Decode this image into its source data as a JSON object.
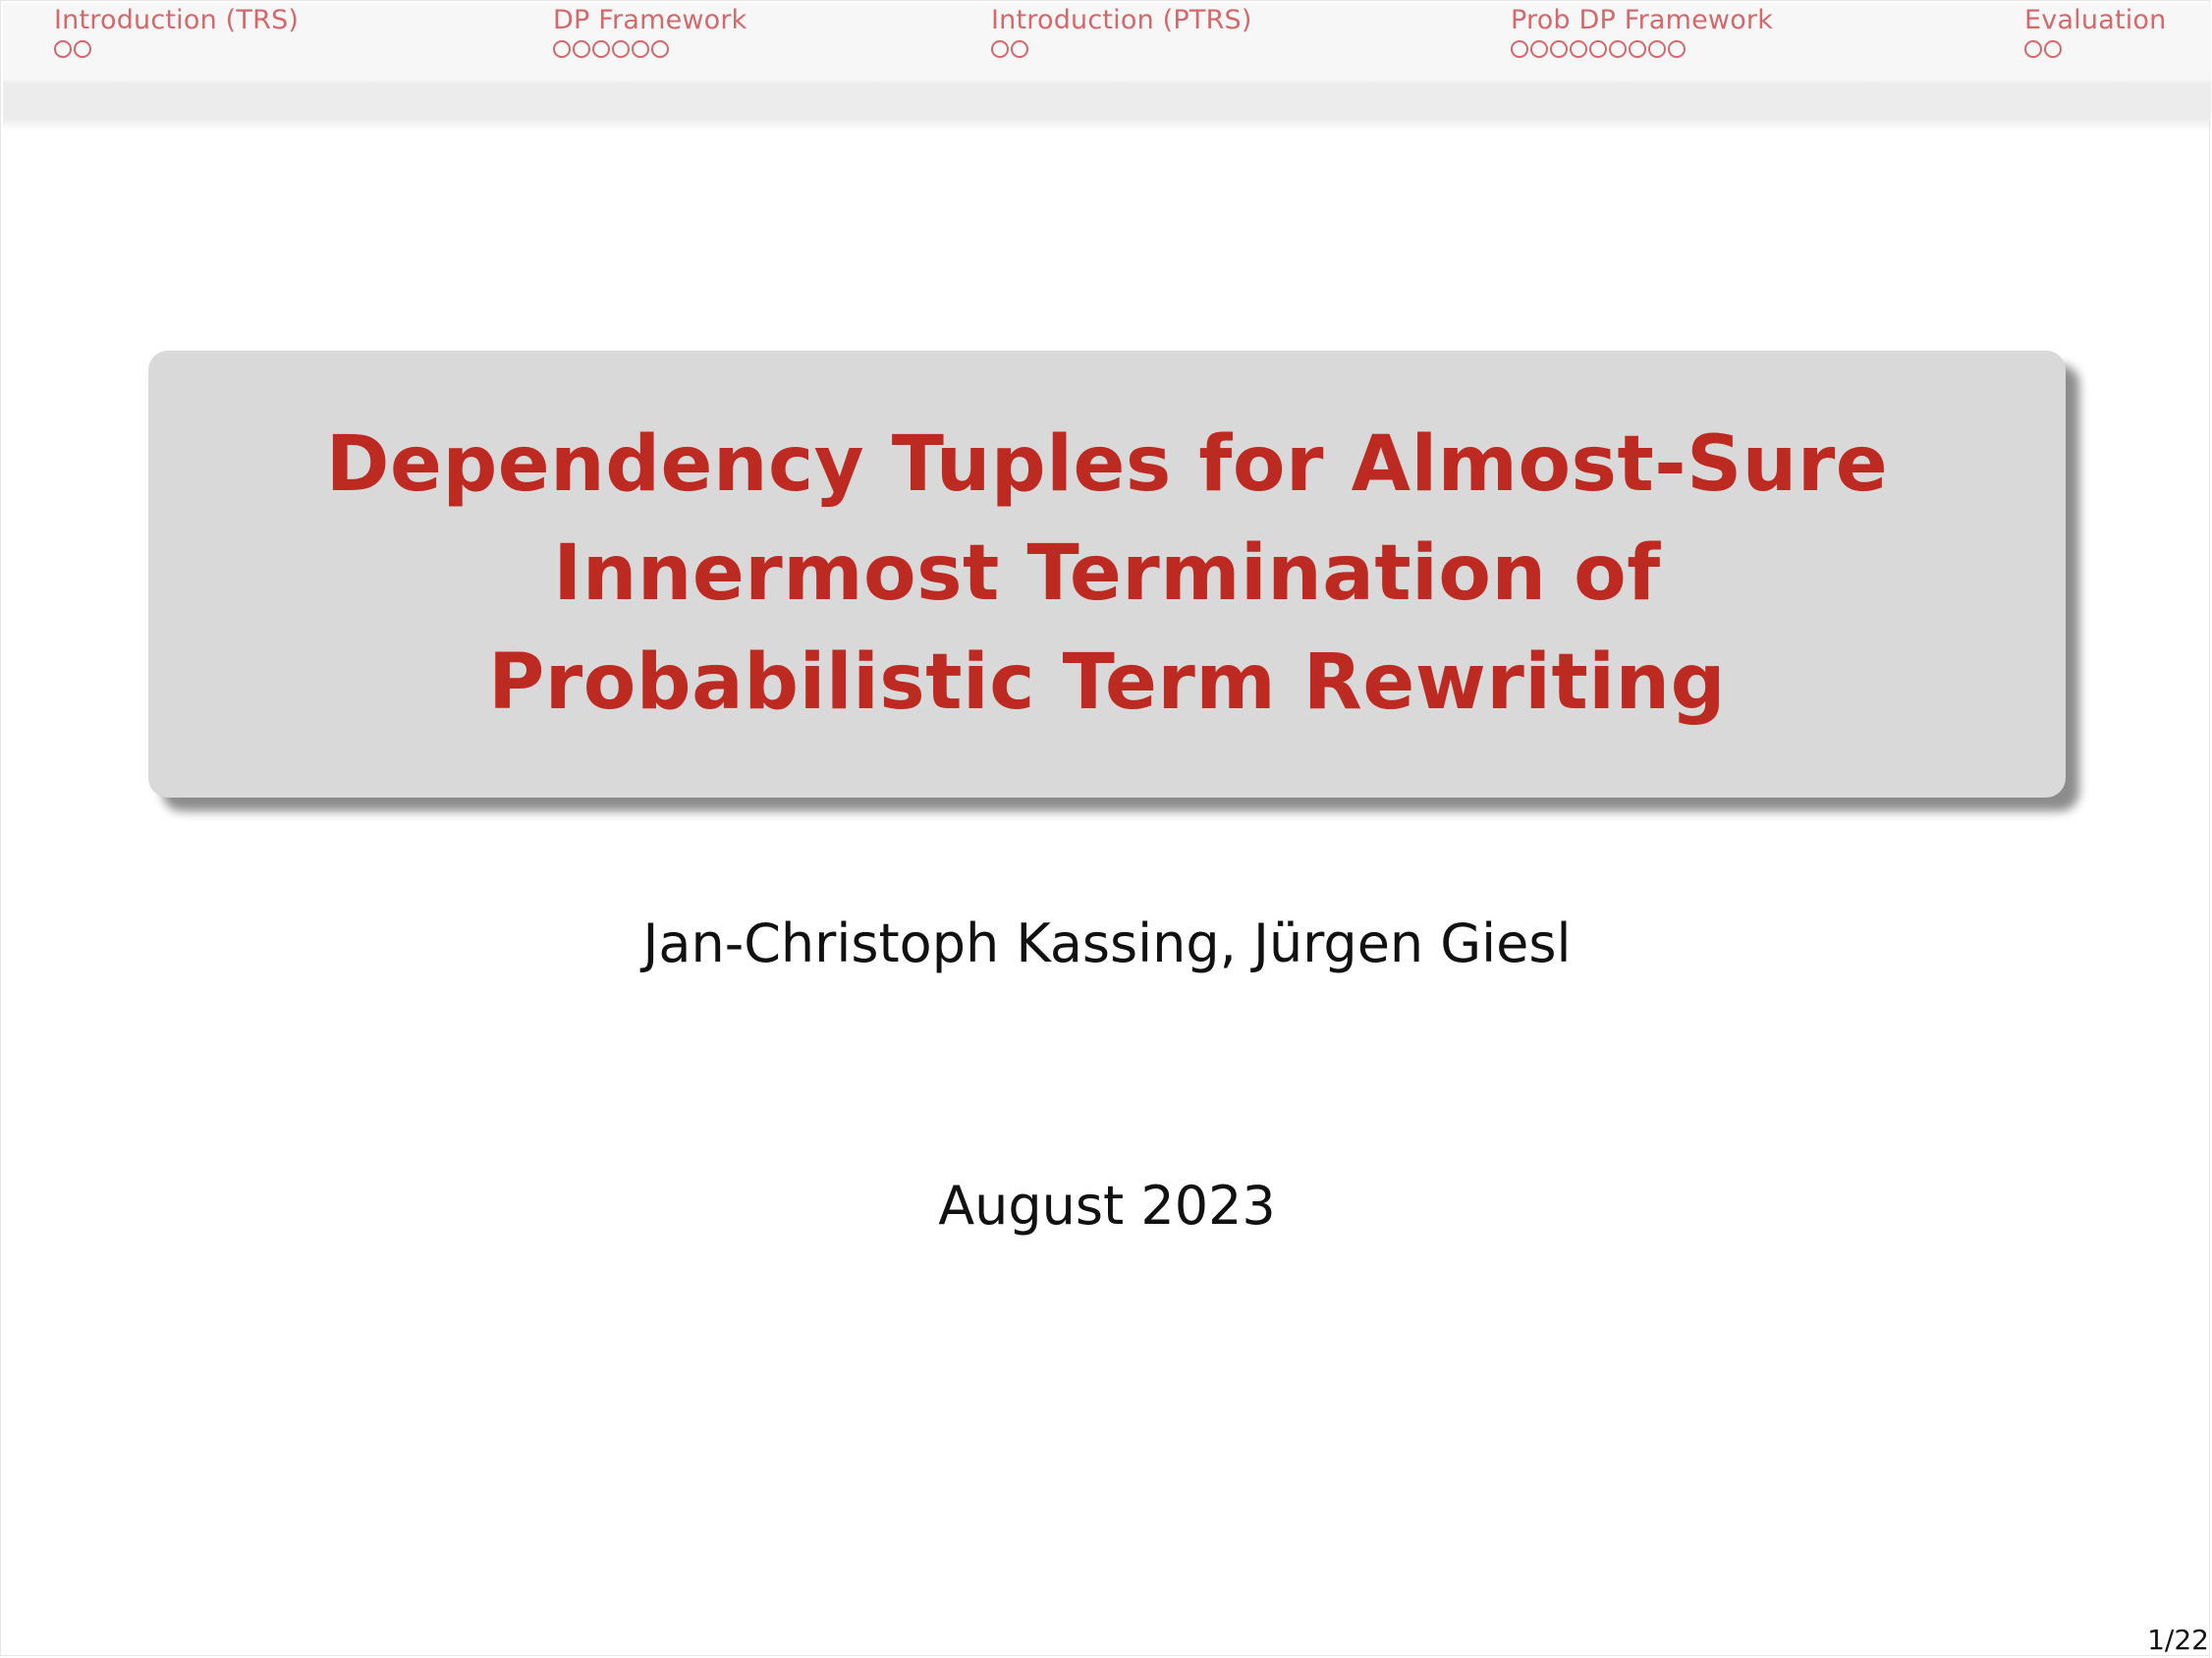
{
  "nav": {
    "sections": [
      {
        "label": "Introduction (TRS)",
        "dots": 2
      },
      {
        "label": "DP Framework",
        "dots": 6
      },
      {
        "label": "Introduction (PTRS)",
        "dots": 2
      },
      {
        "label": "Prob DP Framework",
        "dots": 9
      },
      {
        "label": "Evaluation",
        "dots": 2
      }
    ]
  },
  "title": "Dependency Tuples for Almost-Sure Innermost Termination of Probabilistic Term Rewriting",
  "authors": "Jan-Christoph Kassing, Jürgen Giesl",
  "date": "August 2023",
  "page_number": "1/22",
  "colors": {
    "title": "#bd2a22",
    "nav": "#d4686a",
    "title_box": "#d9d9d9"
  }
}
